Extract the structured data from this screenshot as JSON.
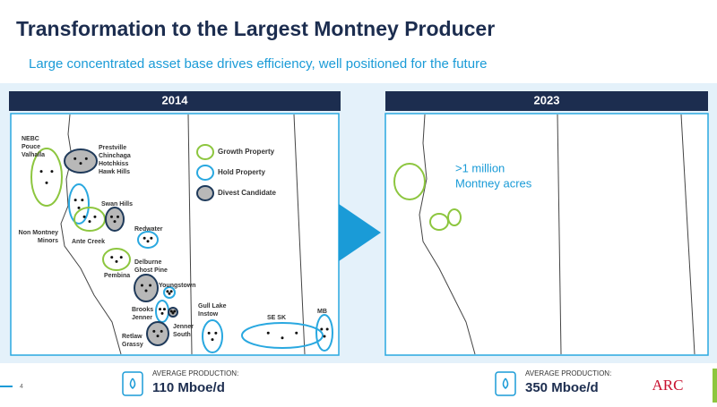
{
  "header": {
    "title": "Transformation to the Largest Montney Producer",
    "subtitle": "Large concentrated asset base drives efficiency, well positioned for the future"
  },
  "left_panel": {
    "title": "2014",
    "labels": [
      [
        "NEBC",
        "Pouce",
        "Valhalla"
      ],
      [
        "Prestville",
        "Chinchaga",
        "Hotchkiss",
        "Hawk Hills"
      ],
      [
        "Swan Hills"
      ],
      [
        "Non Montney",
        "Minors"
      ],
      [
        "Ante Creek"
      ],
      [
        "Redwater"
      ],
      [
        "Delburne",
        "Ghost Pine"
      ],
      [
        "Pembina"
      ],
      [
        "Youngstown"
      ],
      [
        "Brooks",
        "Jenner"
      ],
      [
        "Jenner",
        "South"
      ],
      [
        "Retlaw",
        "Grassy"
      ],
      [
        "Gull Lake",
        "Instow"
      ],
      [
        "SE SK"
      ],
      [
        "MB"
      ]
    ],
    "legend": [
      "Growth Property",
      "Hold Property",
      "Divest Candidate"
    ],
    "production_label": "AVERAGE PRODUCTION:",
    "production": "110 Mboe/d"
  },
  "right_panel": {
    "title": "2023",
    "annotation": [
      ">1 million",
      "Montney acres"
    ],
    "production_label": "AVERAGE PRODUCTION:",
    "production": "350 Mboe/d"
  },
  "footer": {
    "page": "4",
    "logo": "ARC"
  }
}
